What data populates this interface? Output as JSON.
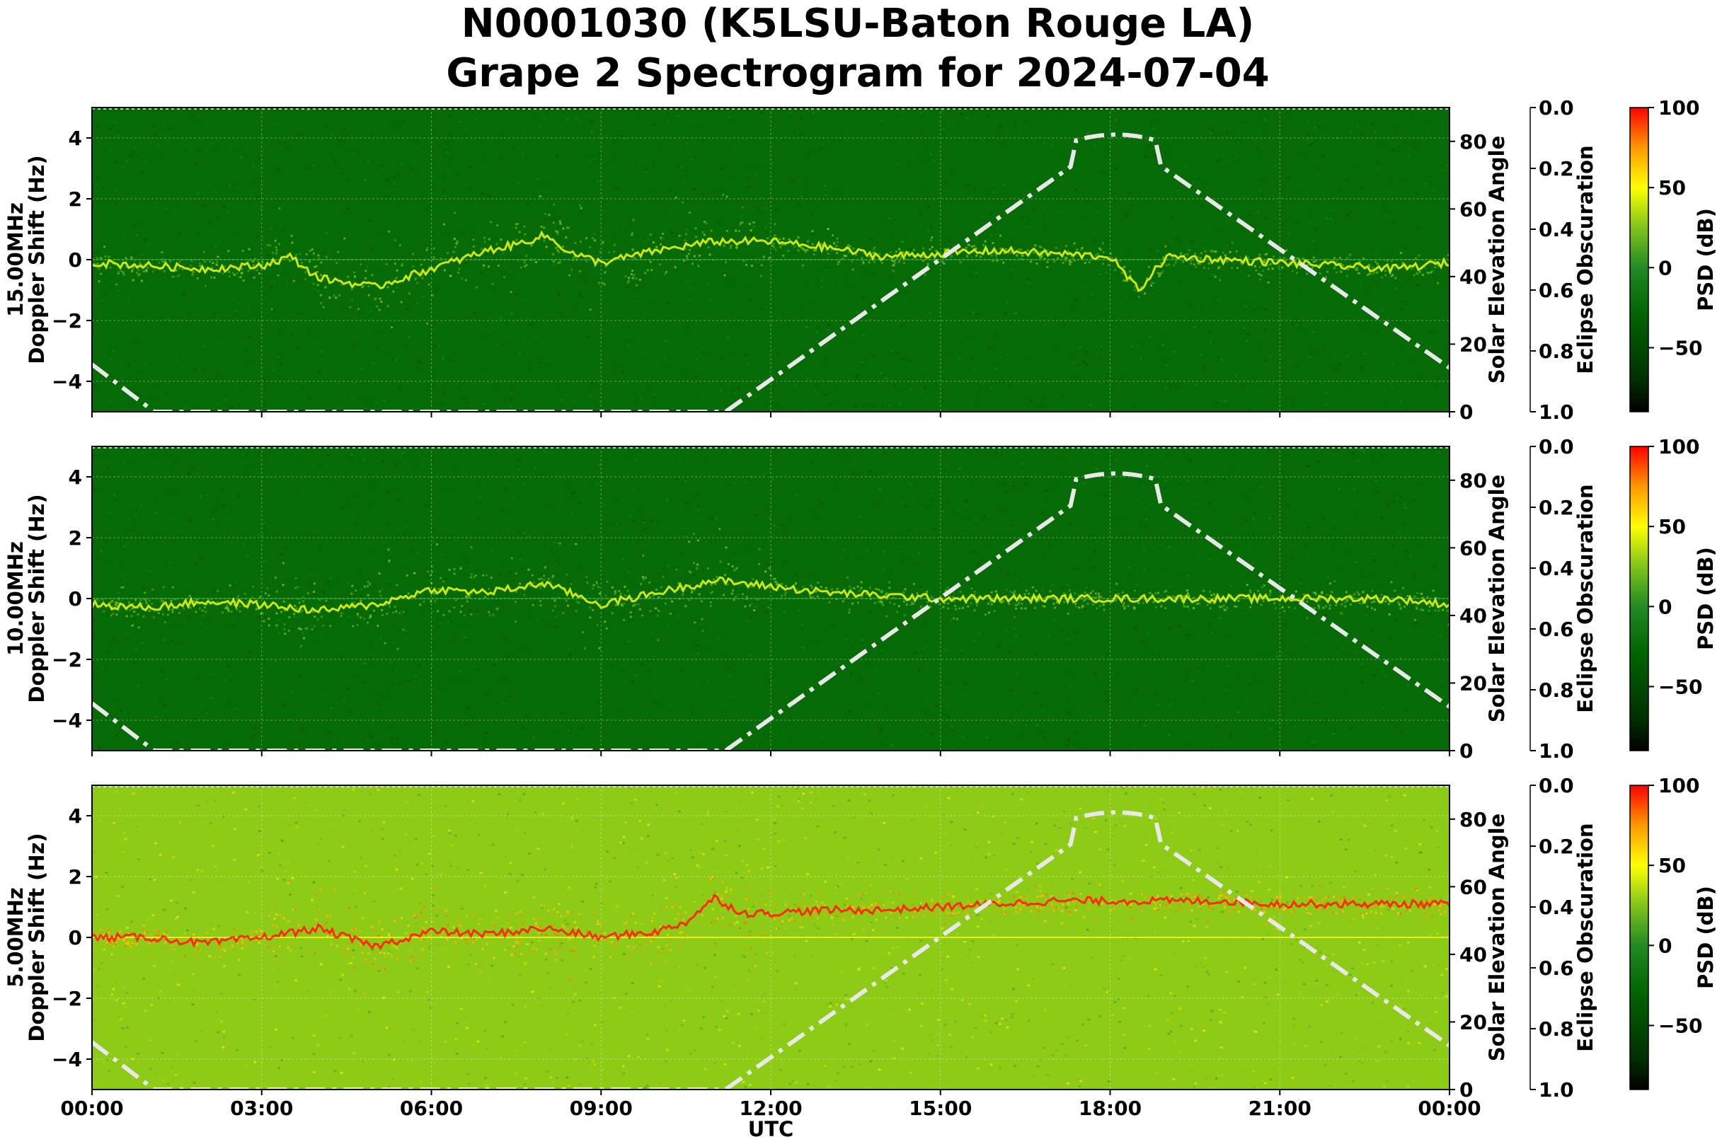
{
  "chart_data": {
    "type": "heatmap",
    "title": [
      "N0001030 (K5LSU-Baton Rouge LA)",
      "Grape 2 Spectrogram for 2024-07-04"
    ],
    "xlabel": "UTC",
    "x_ticks": [
      "00:00",
      "03:00",
      "06:00",
      "09:00",
      "12:00",
      "15:00",
      "18:00",
      "21:00",
      "00:00"
    ],
    "xlim_hours": [
      0,
      24
    ],
    "grid": true,
    "colormap": {
      "label": "PSD (dB)",
      "range": [
        -90,
        100
      ],
      "ticks": [
        100,
        50,
        0,
        -50
      ],
      "tick_labels": [
        "100",
        "50",
        "0",
        "−50"
      ],
      "stops": [
        {
          "value": -90,
          "color": "#000000"
        },
        {
          "value": -70,
          "color": "#003000"
        },
        {
          "value": -30,
          "color": "#006400"
        },
        {
          "value": 0,
          "color": "#228b22"
        },
        {
          "value": 25,
          "color": "#7fc41a"
        },
        {
          "value": 50,
          "color": "#ffff00"
        },
        {
          "value": 75,
          "color": "#ff9900"
        },
        {
          "value": 100,
          "color": "#ff0000"
        }
      ]
    },
    "panels": [
      {
        "frequency_label": "15.00MHz",
        "ylabel": "Doppler Shift (Hz)",
        "ylim": [
          -5,
          5
        ],
        "y_ticks": [
          4,
          2,
          0,
          -2,
          -4
        ],
        "y_tick_labels": [
          "4",
          "2",
          "0",
          "−2",
          "−4"
        ],
        "background_psd_db": -25,
        "doppler_trace": {
          "hours": [
            0,
            1,
            2,
            3,
            3.5,
            4,
            5,
            6,
            7,
            7.5,
            8,
            8.5,
            9,
            10,
            11,
            12,
            13,
            14,
            15,
            16,
            17,
            18,
            18.5,
            19,
            20,
            21,
            22,
            23,
            24
          ],
          "hz": [
            -0.1,
            -0.2,
            -0.3,
            -0.2,
            0.1,
            -0.6,
            -0.9,
            -0.3,
            0.3,
            0.5,
            0.8,
            0.2,
            -0.1,
            0.3,
            0.6,
            0.6,
            0.4,
            0.1,
            0.2,
            0.3,
            0.2,
            0.1,
            -1.0,
            0.1,
            0.0,
            -0.1,
            -0.2,
            -0.3,
            -0.1
          ]
        },
        "solar_elevation": {
          "ylabel": "Solar Elevation Angle",
          "ylim": [
            0,
            90
          ],
          "y_ticks": [
            80,
            60,
            40,
            20,
            0
          ]
        },
        "eclipse_obscuration": {
          "ylabel": "Eclipse Obscuration",
          "ylim": [
            0.0,
            1.0
          ],
          "y_ticks": [
            "0.0",
            "0.2",
            "0.4",
            "0.6",
            "0.8",
            "1.0"
          ]
        }
      },
      {
        "frequency_label": "10.00MHz",
        "ylabel": "Doppler Shift (Hz)",
        "ylim": [
          -5,
          5
        ],
        "y_ticks": [
          4,
          2,
          0,
          -2,
          -4
        ],
        "y_tick_labels": [
          "4",
          "2",
          "0",
          "−2",
          "−4"
        ],
        "background_psd_db": -25,
        "doppler_trace": {
          "hours": [
            0,
            1,
            2,
            3,
            4,
            5,
            6,
            7,
            8,
            9,
            10,
            11,
            12,
            13,
            14,
            15,
            16,
            17,
            18,
            19,
            20,
            21,
            22,
            23,
            24
          ],
          "hz": [
            -0.2,
            -0.3,
            -0.1,
            -0.2,
            -0.4,
            -0.2,
            0.3,
            0.2,
            0.5,
            -0.2,
            0.2,
            0.6,
            0.4,
            0.2,
            0.1,
            0.0,
            0.0,
            0.0,
            0.0,
            0.0,
            0.0,
            0.0,
            0.0,
            0.0,
            -0.2
          ]
        },
        "solar_elevation": {
          "ylabel": "Solar Elevation Angle",
          "ylim": [
            0,
            90
          ],
          "y_ticks": [
            80,
            60,
            40,
            20,
            0
          ]
        },
        "eclipse_obscuration": {
          "ylabel": "Eclipse Obscuration",
          "ylim": [
            0.0,
            1.0
          ],
          "y_ticks": [
            "0.0",
            "0.2",
            "0.4",
            "0.6",
            "0.8",
            "1.0"
          ]
        }
      },
      {
        "frequency_label": "5.00MHz",
        "ylabel": "Doppler Shift (Hz)",
        "ylim": [
          -5,
          5
        ],
        "y_ticks": [
          4,
          2,
          0,
          -2,
          -4
        ],
        "y_tick_labels": [
          "4",
          "2",
          "0",
          "−2",
          "−4"
        ],
        "background_psd_db": 28,
        "doppler_trace": {
          "hours": [
            0,
            1,
            2,
            3,
            4,
            5,
            6,
            7,
            8,
            9,
            10,
            10.5,
            11,
            11.5,
            12,
            13,
            14,
            15,
            16,
            17,
            18,
            19,
            20,
            21,
            22,
            23,
            24
          ],
          "hz": [
            0.0,
            0.0,
            -0.2,
            0.0,
            0.3,
            -0.3,
            0.2,
            0.1,
            0.3,
            0.0,
            0.2,
            0.5,
            1.3,
            0.8,
            0.8,
            0.9,
            0.9,
            1.0,
            1.1,
            1.2,
            1.2,
            1.2,
            1.2,
            1.1,
            1.1,
            1.1,
            1.1
          ]
        },
        "solar_elevation": {
          "ylabel": "Solar Elevation Angle",
          "ylim": [
            0,
            90
          ],
          "y_ticks": [
            80,
            60,
            40,
            20,
            0
          ]
        },
        "eclipse_obscuration": {
          "ylabel": "Eclipse Obscuration",
          "ylim": [
            0.0,
            1.0
          ],
          "y_ticks": [
            "0.0",
            "0.2",
            "0.4",
            "0.6",
            "0.8",
            "1.0"
          ]
        }
      }
    ],
    "solar_elevation_curve": {
      "style": "dash-dot",
      "color": "#e8e8e8",
      "hours": [
        0,
        1.1,
        11.2,
        18.1,
        24
      ],
      "degrees": [
        14,
        0,
        0,
        82,
        13
      ]
    }
  }
}
